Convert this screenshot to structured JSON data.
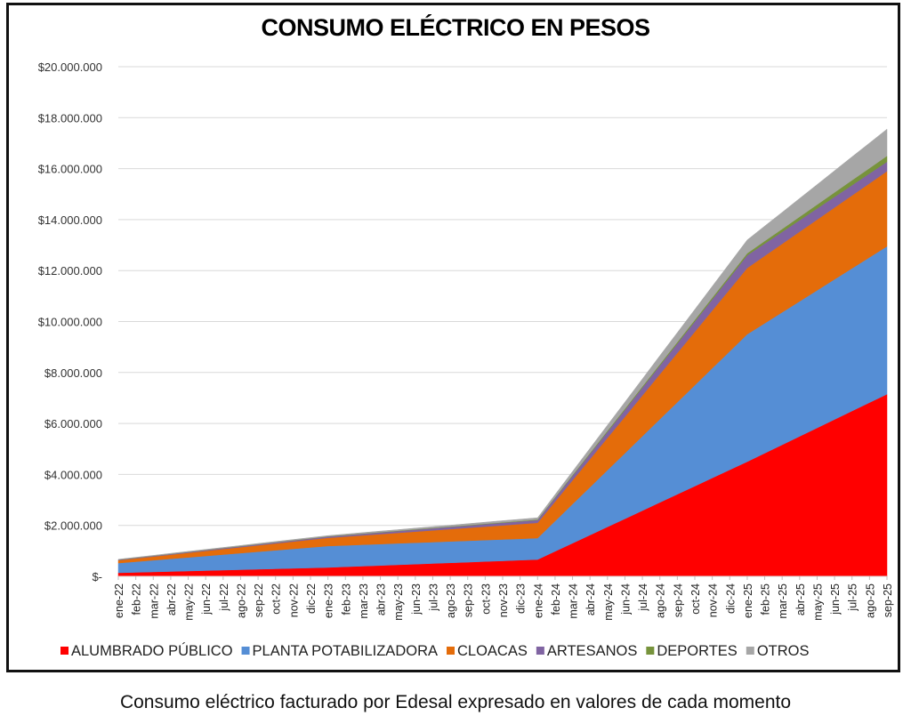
{
  "chart_data": {
    "type": "area",
    "stacked": true,
    "title": "CONSUMO ELÉCTRICO EN PESOS",
    "caption": "Consumo eléctrico facturado por Edesal expresado en valores de cada momento",
    "xlabel": "",
    "ylabel": "",
    "ylim": [
      0,
      20000000
    ],
    "yticks": [
      0,
      2000000,
      4000000,
      6000000,
      8000000,
      10000000,
      12000000,
      14000000,
      16000000,
      18000000,
      20000000
    ],
    "ytick_labels": [
      "$-",
      "$2.000.000",
      "$4.000.000",
      "$6.000.000",
      "$8.000.000",
      "$10.000.000",
      "$12.000.000",
      "$14.000.000",
      "$16.000.000",
      "$18.000.000",
      "$20.000.000"
    ],
    "grid": true,
    "legend_position": "bottom",
    "categories": [
      "ene-22",
      "feb-22",
      "mar-22",
      "abr-22",
      "may-22",
      "jun-22",
      "jul-22",
      "ago-22",
      "sep-22",
      "oct-22",
      "nov-22",
      "dic-22",
      "ene-23",
      "feb-23",
      "mar-23",
      "abr-23",
      "may-23",
      "jun-23",
      "jul-23",
      "ago-23",
      "sep-23",
      "oct-23",
      "nov-23",
      "dic-23",
      "ene-24",
      "feb-24",
      "mar-24",
      "abr-24",
      "may-24",
      "jun-24",
      "jul-24",
      "ago-24",
      "sep-24",
      "oct-24",
      "nov-24",
      "dic-24",
      "ene-25",
      "feb-25",
      "mar-25",
      "abr-25",
      "may-25",
      "jun-25",
      "jul-25",
      "ago-25",
      "sep-25"
    ],
    "series": [
      {
        "name": "ALUMBRADO PÚBLICO",
        "color": "#ff0000",
        "anchors": {
          "ene-22": 140000,
          "ene-23": 350000,
          "ene-24": 660000,
          "ene-25": 4500000,
          "sep-25": 7150000
        }
      },
      {
        "name": "PLANTA POTABILIZADORA",
        "color": "#558ed5",
        "anchors": {
          "ene-22": 380000,
          "ene-23": 840000,
          "ene-24": 840000,
          "ene-25": 5000000,
          "sep-25": 5800000
        }
      },
      {
        "name": "CLOACAS",
        "color": "#e46c0a",
        "anchors": {
          "ene-22": 110000,
          "ene-23": 320000,
          "ene-24": 600000,
          "ene-25": 2600000,
          "sep-25": 2950000
        }
      },
      {
        "name": "ARTESANOS",
        "color": "#8064a2",
        "anchors": {
          "ene-22": 20000,
          "ene-23": 50000,
          "ene-24": 110000,
          "ene-25": 500000,
          "sep-25": 370000
        }
      },
      {
        "name": "DEPORTES",
        "color": "#77933c",
        "anchors": {
          "ene-22": 5000,
          "ene-23": 10000,
          "ene-24": 20000,
          "ene-25": 80000,
          "sep-25": 230000
        }
      },
      {
        "name": "OTROS",
        "color": "#a6a6a6",
        "anchors": {
          "ene-22": 15000,
          "ene-23": 30000,
          "ene-24": 70000,
          "ene-25": 520000,
          "sep-25": 1050000
        }
      }
    ],
    "interpolation_note": "monthly values linearly interpolated between yearly anchor readings"
  }
}
